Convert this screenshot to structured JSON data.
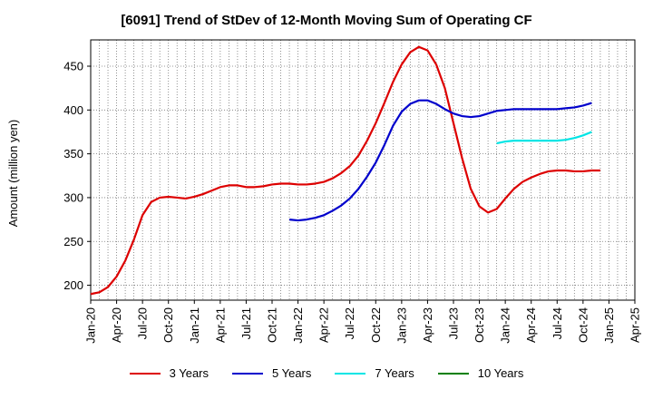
{
  "chart_data": {
    "type": "line",
    "title": "[6091]  Trend of StDev of 12-Month Moving Sum of Operating CF",
    "xlabel": "",
    "ylabel": "Amount (million yen)",
    "x_ticks": [
      "Jan-20",
      "Apr-20",
      "Jul-20",
      "Oct-20",
      "Jan-21",
      "Apr-21",
      "Jul-21",
      "Oct-21",
      "Jan-22",
      "Apr-22",
      "Jul-22",
      "Oct-22",
      "Jan-23",
      "Apr-23",
      "Jul-23",
      "Oct-23",
      "Jan-24",
      "Apr-24",
      "Jul-24",
      "Oct-24",
      "Jan-25",
      "Apr-25"
    ],
    "x_range": [
      "Jan-20",
      "Apr-25"
    ],
    "y_ticks": [
      200,
      250,
      300,
      350,
      400,
      450
    ],
    "ylim": [
      183,
      480
    ],
    "grid": true,
    "legend_position": "bottom",
    "series": [
      {
        "name": "3 Years",
        "color": "#dd0000",
        "start": "Jan-20",
        "values": [
          190,
          192,
          198,
          210,
          228,
          252,
          280,
          295,
          300,
          301,
          300,
          299,
          301,
          304,
          308,
          312,
          314,
          314,
          312,
          312,
          313,
          315,
          316,
          316,
          315,
          315,
          316,
          318,
          322,
          328,
          336,
          348,
          365,
          385,
          408,
          432,
          452,
          466,
          472,
          468,
          452,
          425,
          385,
          345,
          310,
          290,
          283,
          287,
          299,
          310,
          318,
          323,
          327,
          330,
          331,
          331,
          330,
          330,
          331,
          331
        ]
      },
      {
        "name": "5 Years",
        "color": "#0000cc",
        "start": "Dec-21",
        "values": [
          275,
          274,
          275,
          277,
          280,
          285,
          291,
          299,
          310,
          324,
          340,
          360,
          382,
          398,
          407,
          411,
          411,
          407,
          401,
          396,
          393,
          392,
          393,
          396,
          399,
          400,
          401,
          401,
          401,
          401,
          401,
          401,
          402,
          403,
          405,
          408
        ]
      },
      {
        "name": "7 Years",
        "color": "#00e5e5",
        "start": "Dec-23",
        "values": [
          362,
          364,
          365,
          365,
          365,
          365,
          365,
          365,
          366,
          368,
          371,
          375
        ]
      },
      {
        "name": "10 Years",
        "color": "#008000",
        "start": "",
        "values": []
      }
    ]
  }
}
